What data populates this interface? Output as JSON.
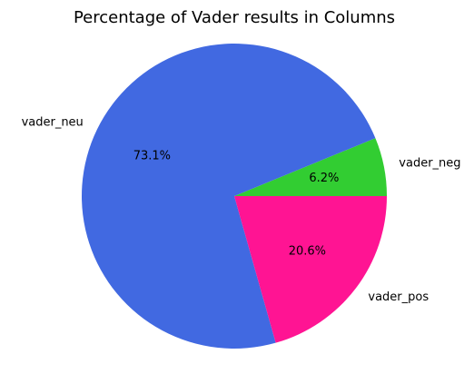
{
  "chart_data": {
    "type": "pie",
    "title": "Percentage of Vader results in Columns",
    "categories": [
      "vader_neg",
      "vader_neu",
      "vader_pos"
    ],
    "values": [
      6.2,
      73.1,
      20.6
    ],
    "value_labels": [
      "6.2%",
      "73.1%",
      "20.6%"
    ],
    "colors": [
      "#32CD32",
      "#4169E1",
      "#FF1493"
    ],
    "start_angle_deg": 0,
    "direction": "counterclockwise"
  }
}
